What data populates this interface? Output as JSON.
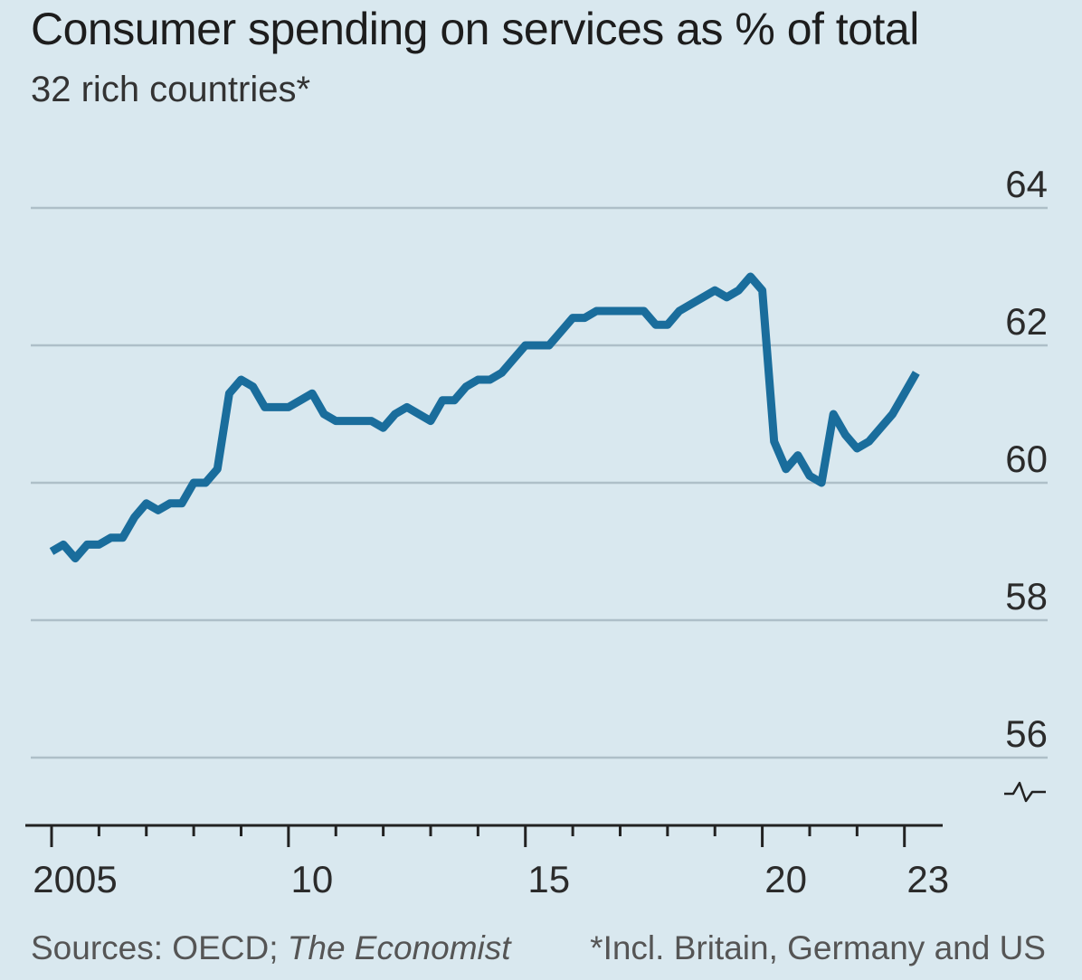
{
  "chart_data": {
    "type": "line",
    "title": "Consumer spending on services as % of total",
    "subtitle": "32 rich countries*",
    "xlabel": "",
    "ylabel": "",
    "xlim": [
      2005,
      2023.75
    ],
    "ylim": [
      55,
      64.5
    ],
    "yticks": [
      56,
      58,
      60,
      62,
      64
    ],
    "xtick_labels": [
      {
        "x": 2005,
        "label": "2005"
      },
      {
        "x": 2010,
        "label": "10"
      },
      {
        "x": 2015,
        "label": "15"
      },
      {
        "x": 2020,
        "label": "20"
      },
      {
        "x": 2023,
        "label": "23"
      }
    ],
    "axis_break": true,
    "grid": true,
    "colors": {
      "line": "#1a6d9c",
      "grid": "#aebfc8",
      "background": "#d9e8ef",
      "axis": "#222222"
    },
    "series": [
      {
        "x": [
          2005.0,
          2005.25,
          2005.5,
          2005.75,
          2006.0,
          2006.25,
          2006.5,
          2006.75,
          2007.0,
          2007.25,
          2007.5,
          2007.75,
          2008.0,
          2008.25,
          2008.5,
          2008.75,
          2009.0,
          2009.25,
          2009.5,
          2009.75,
          2010.0,
          2010.25,
          2010.5,
          2010.75,
          2011.0,
          2011.25,
          2011.5,
          2011.75,
          2012.0,
          2012.25,
          2012.5,
          2012.75,
          2013.0,
          2013.25,
          2013.5,
          2013.75,
          2014.0,
          2014.25,
          2014.5,
          2014.75,
          2015.0,
          2015.25,
          2015.5,
          2015.75,
          2016.0,
          2016.25,
          2016.5,
          2016.75,
          2017.0,
          2017.25,
          2017.5,
          2017.75,
          2018.0,
          2018.25,
          2018.5,
          2018.75,
          2019.0,
          2019.25,
          2019.5,
          2019.75,
          2020.0,
          2020.25,
          2020.5,
          2020.75,
          2021.0,
          2021.25,
          2021.5,
          2021.75,
          2022.0,
          2022.25,
          2022.5,
          2022.75,
          2023.0,
          2023.25
        ],
        "values": [
          59.0,
          59.1,
          58.9,
          59.1,
          59.1,
          59.2,
          59.2,
          59.5,
          59.7,
          59.6,
          59.7,
          59.7,
          60.0,
          60.0,
          60.2,
          61.3,
          61.5,
          61.4,
          61.1,
          61.1,
          61.1,
          61.2,
          61.3,
          61.0,
          60.9,
          60.9,
          60.9,
          60.9,
          60.8,
          61.0,
          61.1,
          61.0,
          60.9,
          61.2,
          61.2,
          61.4,
          61.5,
          61.5,
          61.6,
          61.8,
          62.0,
          62.0,
          62.0,
          62.2,
          62.4,
          62.4,
          62.5,
          62.5,
          62.5,
          62.5,
          62.5,
          62.3,
          62.3,
          62.5,
          62.6,
          62.7,
          62.8,
          62.7,
          62.8,
          63.0,
          62.8,
          60.6,
          60.2,
          60.4,
          60.1,
          60.0,
          61.0,
          60.7,
          60.5,
          60.6,
          60.8,
          61.0,
          61.3,
          61.6
        ]
      }
    ]
  },
  "footer": {
    "sources_label": "Sources: OECD; ",
    "sources_italic": "The Economist",
    "footnote": "*Incl. Britain, Germany and US"
  }
}
